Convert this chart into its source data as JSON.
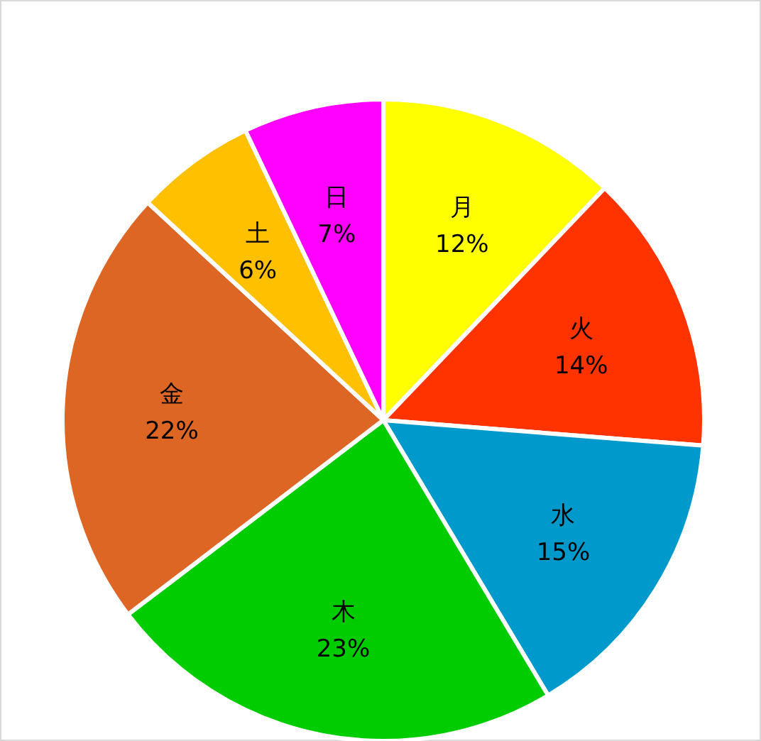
{
  "chart_data": {
    "type": "pie",
    "categories": [
      "月",
      "火",
      "水",
      "木",
      "金",
      "土",
      "日"
    ],
    "values": [
      12,
      14,
      15,
      23,
      22,
      6,
      7
    ],
    "value_labels": [
      "12%",
      "14%",
      "15%",
      "23%",
      "22%",
      "6%",
      "7%"
    ],
    "colors": [
      "#ffff00",
      "#ff3300",
      "#0099cc",
      "#00cc00",
      "#dd6624",
      "#ffc000",
      "#ff00ff"
    ]
  }
}
